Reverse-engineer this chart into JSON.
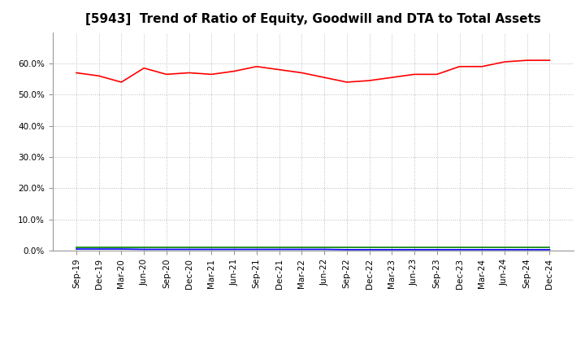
{
  "title": "[5943]  Trend of Ratio of Equity, Goodwill and DTA to Total Assets",
  "x_labels": [
    "Sep-19",
    "Dec-19",
    "Mar-20",
    "Jun-20",
    "Sep-20",
    "Dec-20",
    "Mar-21",
    "Jun-21",
    "Sep-21",
    "Dec-21",
    "Mar-22",
    "Jun-22",
    "Sep-22",
    "Dec-22",
    "Mar-23",
    "Jun-23",
    "Sep-23",
    "Dec-23",
    "Mar-24",
    "Jun-24",
    "Sep-24",
    "Dec-24"
  ],
  "equity": [
    0.57,
    0.56,
    0.54,
    0.585,
    0.565,
    0.57,
    0.565,
    0.575,
    0.59,
    0.58,
    0.57,
    0.555,
    0.54,
    0.545,
    0.555,
    0.565,
    0.565,
    0.59,
    0.59,
    0.605,
    0.61,
    0.61
  ],
  "goodwill": [
    0.005,
    0.005,
    0.005,
    0.004,
    0.004,
    0.004,
    0.004,
    0.004,
    0.004,
    0.004,
    0.004,
    0.004,
    0.003,
    0.003,
    0.003,
    0.003,
    0.003,
    0.003,
    0.003,
    0.003,
    0.003,
    0.003
  ],
  "dta": [
    0.01,
    0.01,
    0.01,
    0.01,
    0.01,
    0.01,
    0.01,
    0.01,
    0.01,
    0.01,
    0.01,
    0.01,
    0.01,
    0.01,
    0.01,
    0.01,
    0.01,
    0.01,
    0.01,
    0.01,
    0.01,
    0.01
  ],
  "equity_color": "#ff0000",
  "goodwill_color": "#0000ff",
  "dta_color": "#008000",
  "ylim": [
    0.0,
    0.7
  ],
  "yticks": [
    0.0,
    0.1,
    0.2,
    0.3,
    0.4,
    0.5,
    0.6
  ],
  "background_color": "#ffffff",
  "grid_color": "#bbbbbb",
  "title_fontsize": 11,
  "tick_fontsize": 7.5,
  "legend_fontsize": 9
}
